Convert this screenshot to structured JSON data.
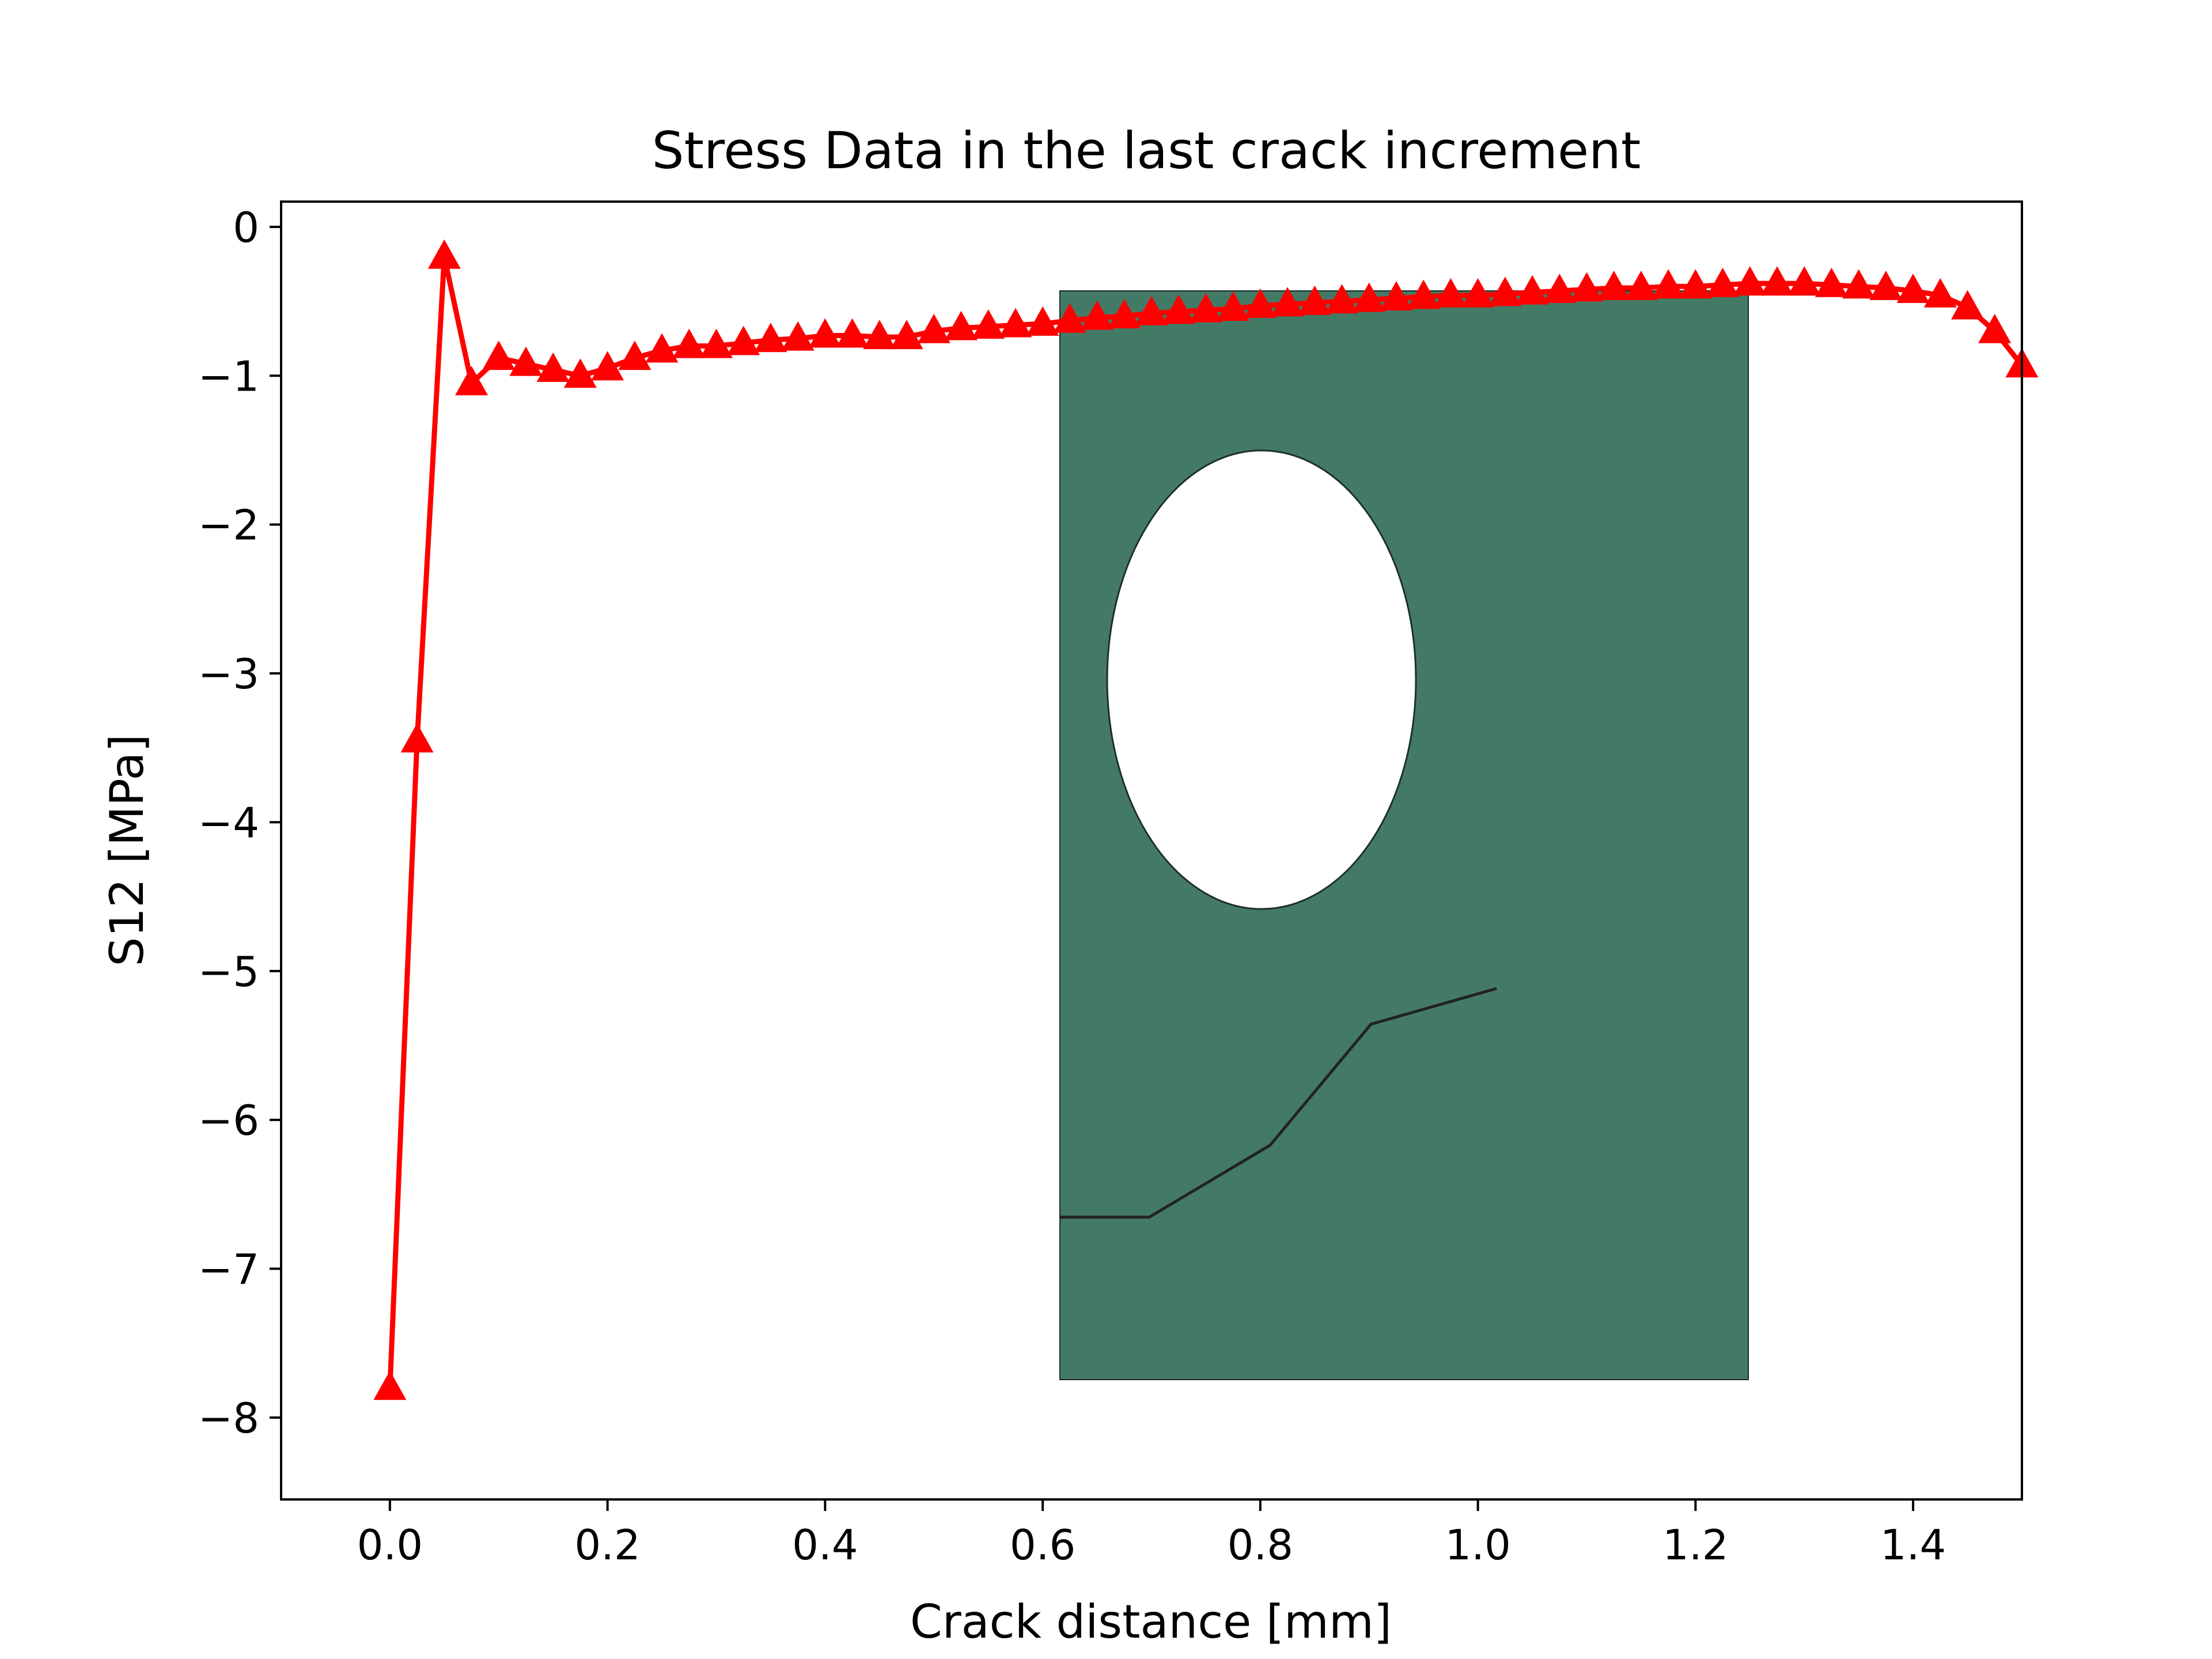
{
  "chart_data": {
    "type": "line",
    "title": "Stress Data in the last crack increment",
    "xlabel": "Crack distance [mm]",
    "ylabel": "S12 [MPa]",
    "xlim": [
      -0.1,
      1.5
    ],
    "ylim": [
      -8.55,
      0.17
    ],
    "xticks": [
      {
        "value": 0.0,
        "label": "0.0"
      },
      {
        "value": 0.2,
        "label": "0.2"
      },
      {
        "value": 0.4,
        "label": "0.4"
      },
      {
        "value": 0.6,
        "label": "0.6"
      },
      {
        "value": 0.8,
        "label": "0.8"
      },
      {
        "value": 1.0,
        "label": "1.0"
      },
      {
        "value": 1.2,
        "label": "1.2"
      },
      {
        "value": 1.4,
        "label": "1.4"
      }
    ],
    "yticks": [
      {
        "value": 0,
        "label": "0"
      },
      {
        "value": -1,
        "label": "−1"
      },
      {
        "value": -2,
        "label": "−2"
      },
      {
        "value": -3,
        "label": "−3"
      },
      {
        "value": -4,
        "label": "−4"
      },
      {
        "value": -5,
        "label": "−5"
      },
      {
        "value": -6,
        "label": "−6"
      },
      {
        "value": -7,
        "label": "−7"
      },
      {
        "value": -8,
        "label": "−8"
      }
    ],
    "grid": false,
    "series": [
      {
        "color": "#ff0000",
        "marker": "triangle-up",
        "x": [
          0.0,
          0.025,
          0.05,
          0.075,
          0.1,
          0.125,
          0.15,
          0.175,
          0.2,
          0.225,
          0.25,
          0.275,
          0.3,
          0.325,
          0.35,
          0.375,
          0.4,
          0.425,
          0.45,
          0.475,
          0.5,
          0.525,
          0.55,
          0.575,
          0.6,
          0.625,
          0.65,
          0.675,
          0.7,
          0.725,
          0.75,
          0.775,
          0.8,
          0.825,
          0.85,
          0.875,
          0.9,
          0.925,
          0.95,
          0.975,
          1.0,
          1.025,
          1.05,
          1.075,
          1.1,
          1.125,
          1.15,
          1.175,
          1.2,
          1.225,
          1.25,
          1.275,
          1.3,
          1.325,
          1.35,
          1.375,
          1.4,
          1.425,
          1.45,
          1.475,
          1.5
        ],
        "y": [
          -7.8,
          -3.45,
          -0.2,
          -1.05,
          -0.88,
          -0.92,
          -0.96,
          -1.0,
          -0.95,
          -0.88,
          -0.83,
          -0.8,
          -0.8,
          -0.78,
          -0.76,
          -0.75,
          -0.73,
          -0.73,
          -0.74,
          -0.74,
          -0.7,
          -0.68,
          -0.67,
          -0.66,
          -0.65,
          -0.63,
          -0.61,
          -0.6,
          -0.58,
          -0.57,
          -0.56,
          -0.55,
          -0.53,
          -0.52,
          -0.51,
          -0.5,
          -0.49,
          -0.48,
          -0.47,
          -0.46,
          -0.46,
          -0.45,
          -0.44,
          -0.43,
          -0.42,
          -0.41,
          -0.41,
          -0.4,
          -0.4,
          -0.39,
          -0.38,
          -0.38,
          -0.38,
          -0.39,
          -0.4,
          -0.41,
          -0.43,
          -0.46,
          -0.54,
          -0.7,
          -0.93
        ]
      }
    ],
    "inset_image": {
      "description_icon": "plate-with-hole-crack-icon",
      "fill": "#437a66",
      "hole_fill": "#ffffff"
    }
  }
}
